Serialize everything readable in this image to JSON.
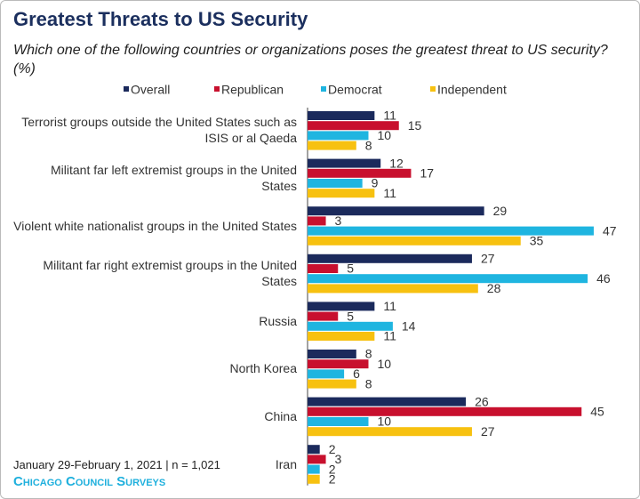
{
  "chart_data": {
    "type": "bar",
    "orientation": "horizontal",
    "title": "Greatest Threats to US Security",
    "subtitle": "Which one of the following countries or organizations poses the greatest threat to US security? (%)",
    "categories": [
      "Terrorist groups outside the United States such as ISIS or al Qaeda",
      "Militant far left extremist groups in the United States",
      "Violent white nationalist groups in the United States",
      "Militant far right extremist groups in the United States",
      "Russia",
      "North Korea",
      "China",
      "Iran"
    ],
    "series": [
      {
        "name": "Overall",
        "color": "#1b2a5c",
        "values": [
          11,
          12,
          29,
          27,
          11,
          8,
          26,
          2
        ]
      },
      {
        "name": "Republican",
        "color": "#c8102e",
        "values": [
          15,
          17,
          3,
          5,
          5,
          10,
          45,
          3
        ]
      },
      {
        "name": "Democrat",
        "color": "#1fb5e0",
        "values": [
          10,
          9,
          47,
          46,
          14,
          6,
          10,
          2
        ]
      },
      {
        "name": "Independent",
        "color": "#f7c110",
        "values": [
          8,
          11,
          35,
          28,
          11,
          8,
          27,
          2
        ]
      }
    ],
    "source": "January 29-February 1, 2021 | n = 1,021",
    "brand": "Chicago Council Surveys"
  }
}
